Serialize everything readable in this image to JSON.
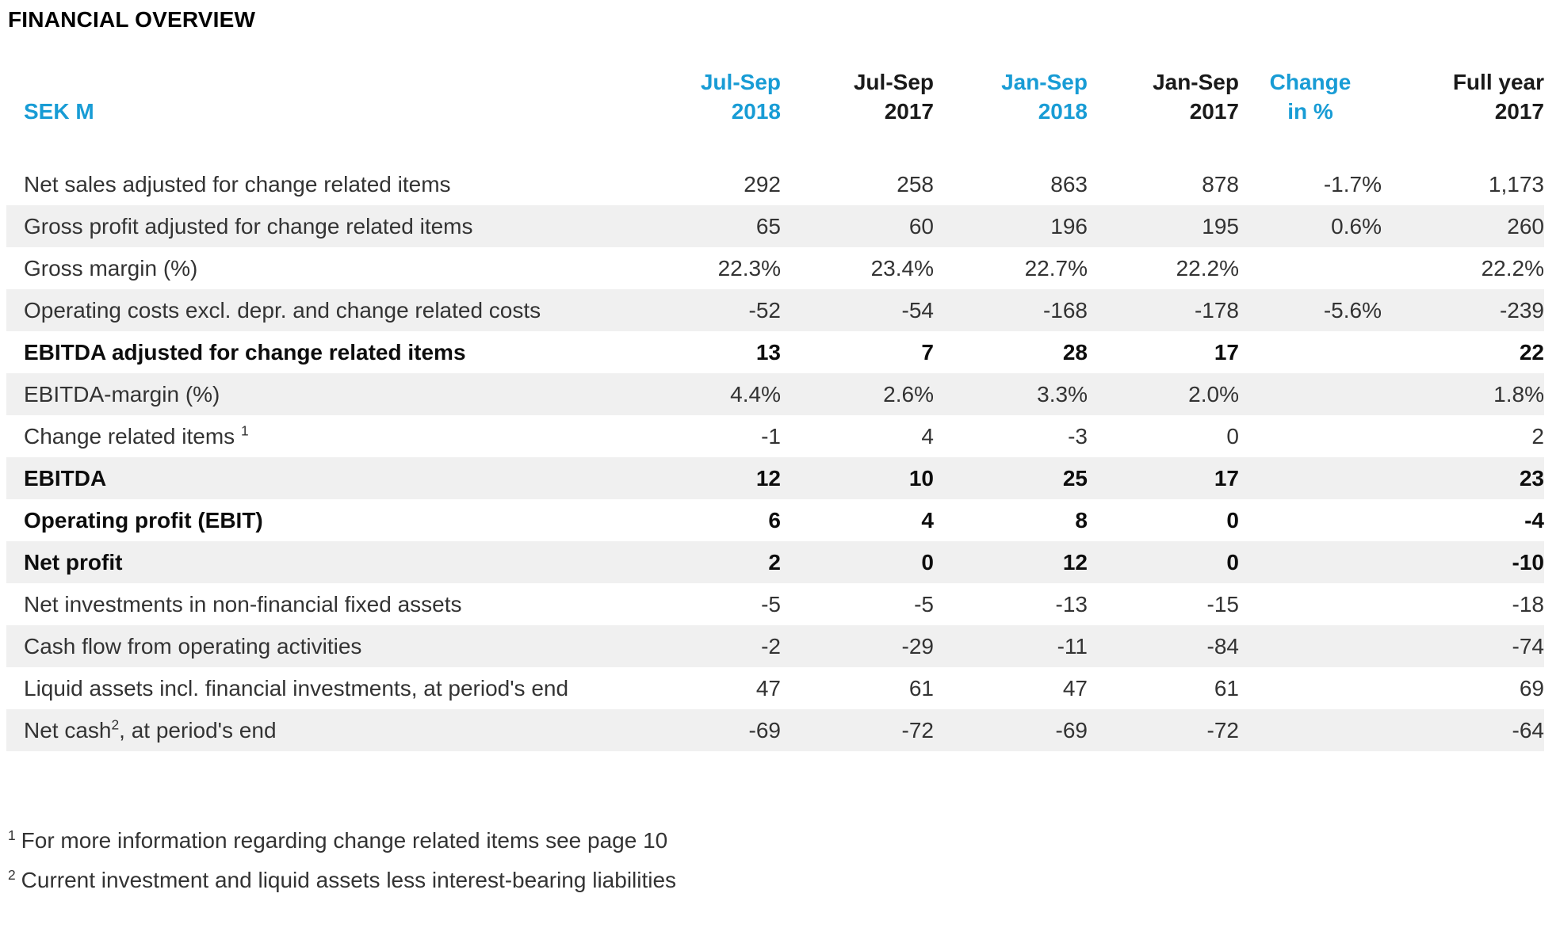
{
  "page": {
    "title": "FINANCIAL OVERVIEW"
  },
  "colors": {
    "accent": "#189cd5",
    "row_shade": "#f0f0f0",
    "text": "#333333",
    "bold_text": "#0d0d0d"
  },
  "table": {
    "unit_label": "SEK M",
    "columns": [
      {
        "line1": "Jul-Sep",
        "line2": "2018",
        "accent": true,
        "center": false
      },
      {
        "line1": "Jul-Sep",
        "line2": "2017",
        "accent": false,
        "center": false
      },
      {
        "line1": "Jan-Sep",
        "line2": "2018",
        "accent": true,
        "center": false
      },
      {
        "line1": "Jan-Sep",
        "line2": "2017",
        "accent": false,
        "center": false
      },
      {
        "line1": "Change",
        "line2": "in %",
        "accent": true,
        "center": true
      },
      {
        "line1": "Full year",
        "line2": "2017",
        "accent": false,
        "center": false
      }
    ],
    "rows": [
      {
        "label": "Net sales adjusted for change related items",
        "sup": null,
        "suffix": null,
        "bold": false,
        "shaded": false,
        "values": [
          "292",
          "258",
          "863",
          "878",
          "-1.7%",
          "1,173"
        ]
      },
      {
        "label": "Gross profit adjusted for change related items",
        "sup": null,
        "suffix": null,
        "bold": false,
        "shaded": true,
        "values": [
          "65",
          "60",
          "196",
          "195",
          "0.6%",
          "260"
        ]
      },
      {
        "label": "Gross margin (%)",
        "sup": null,
        "suffix": null,
        "bold": false,
        "shaded": false,
        "values": [
          "22.3%",
          "23.4%",
          "22.7%",
          "22.2%",
          "",
          "22.2%"
        ]
      },
      {
        "label": "Operating costs excl. depr. and change related costs",
        "sup": null,
        "suffix": null,
        "bold": false,
        "shaded": true,
        "values": [
          "-52",
          "-54",
          "-168",
          "-178",
          "-5.6%",
          "-239"
        ]
      },
      {
        "label": "EBITDA adjusted for change related items",
        "sup": null,
        "suffix": null,
        "bold": true,
        "shaded": false,
        "values": [
          "13",
          "7",
          "28",
          "17",
          "",
          "22"
        ]
      },
      {
        "label": "EBITDA-margin (%)",
        "sup": null,
        "suffix": null,
        "bold": false,
        "shaded": true,
        "values": [
          "4.4%",
          "2.6%",
          "3.3%",
          "2.0%",
          "",
          "1.8%"
        ]
      },
      {
        "label": "Change related items ",
        "sup": "1",
        "suffix": null,
        "bold": false,
        "shaded": false,
        "values": [
          "-1",
          "4",
          "-3",
          "0",
          "",
          "2"
        ]
      },
      {
        "label": "EBITDA",
        "sup": null,
        "suffix": null,
        "bold": true,
        "shaded": true,
        "values": [
          "12",
          "10",
          "25",
          "17",
          "",
          "23"
        ]
      },
      {
        "label": "Operating profit (EBIT)",
        "sup": null,
        "suffix": null,
        "bold": true,
        "shaded": false,
        "values": [
          "6",
          "4",
          "8",
          "0",
          "",
          "-4"
        ]
      },
      {
        "label": "Net profit",
        "sup": null,
        "suffix": null,
        "bold": true,
        "shaded": true,
        "values": [
          "2",
          "0",
          "12",
          "0",
          "",
          "-10"
        ]
      },
      {
        "label": "Net investments in non-financial fixed assets",
        "sup": null,
        "suffix": null,
        "bold": false,
        "shaded": false,
        "values": [
          "-5",
          "-5",
          "-13",
          "-15",
          "",
          "-18"
        ]
      },
      {
        "label": "Cash flow from operating activities",
        "sup": null,
        "suffix": null,
        "bold": false,
        "shaded": true,
        "values": [
          "-2",
          "-29",
          "-11",
          "-84",
          "",
          "-74"
        ]
      },
      {
        "label": "Liquid assets incl. financial investments, at period's end",
        "sup": null,
        "suffix": null,
        "bold": false,
        "shaded": false,
        "values": [
          "47",
          "61",
          "47",
          "61",
          "",
          "69"
        ]
      },
      {
        "label": "Net cash",
        "sup": "2",
        "suffix": ", at period's end",
        "bold": false,
        "shaded": true,
        "values": [
          "-69",
          "-72",
          "-69",
          "-72",
          "",
          "-64"
        ]
      }
    ]
  },
  "footnotes": [
    {
      "sup": "1",
      "text": "For more information regarding change related items see page 10"
    },
    {
      "sup": "2",
      "text": "Current investment and liquid assets less interest-bearing liabilities"
    }
  ]
}
